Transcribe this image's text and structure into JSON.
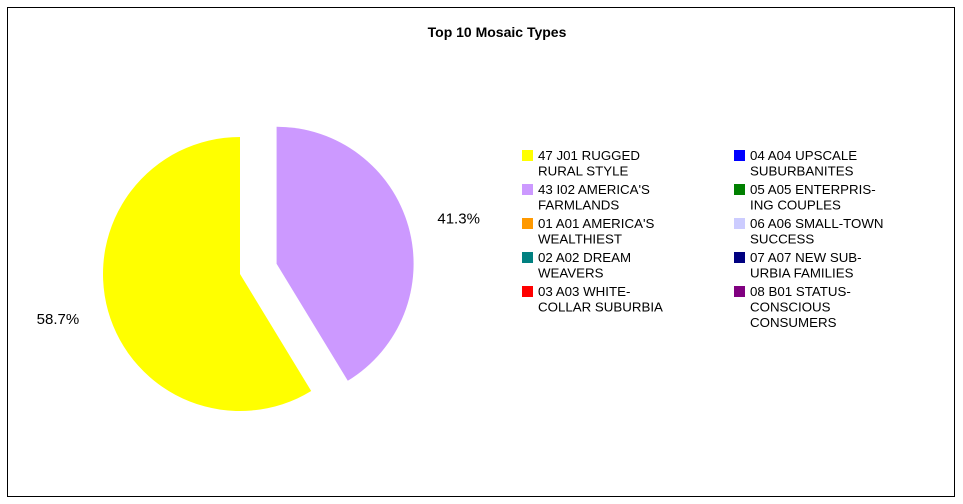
{
  "chart_data": {
    "type": "pie",
    "title": "Top 10 Mosaic Types",
    "slices": [
      {
        "label": [
          "47 J01 RUGGED",
          "RURAL STYLE"
        ],
        "value": 58.7,
        "value_label": "58.7%",
        "color": "#ffff00",
        "shown_in_pie": true
      },
      {
        "label": [
          "43 I02 AMERICA'S",
          "FARMLANDS"
        ],
        "value": 41.3,
        "value_label": "41.3%",
        "color": "#cc99ff",
        "shown_in_pie": true
      },
      {
        "label": [
          "01 A01 AMERICA'S",
          "WEALTHIEST"
        ],
        "value": 0,
        "color": "#ff9900",
        "shown_in_pie": false
      },
      {
        "label": [
          "02 A02 DREAM",
          "WEAVERS"
        ],
        "value": 0,
        "color": "#008080",
        "shown_in_pie": false
      },
      {
        "label": [
          "03 A03 WHITE-",
          "COLLAR SUBURBIA"
        ],
        "value": 0,
        "color": "#ff0000",
        "shown_in_pie": false
      },
      {
        "label": [
          "04 A04 UPSCALE",
          "SUBURBANITES"
        ],
        "value": 0,
        "color": "#0000ff",
        "shown_in_pie": false
      },
      {
        "label": [
          "05 A05 ENTERPRIS-",
          "ING COUPLES"
        ],
        "value": 0,
        "color": "#008000",
        "shown_in_pie": false
      },
      {
        "label": [
          "06 A06 SMALL-TOWN",
          "SUCCESS"
        ],
        "value": 0,
        "color": "#ccccff",
        "shown_in_pie": false
      },
      {
        "label": [
          "07 A07 NEW SUB-",
          "URBIA FAMILIES"
        ],
        "value": 0,
        "color": "#000080",
        "shown_in_pie": false
      },
      {
        "label": [
          "08 B01 STATUS-",
          "CONSCIOUS",
          "CONSUMERS"
        ],
        "value": 0,
        "color": "#800080",
        "shown_in_pie": false
      }
    ],
    "legend_position": "right",
    "exploded_slice": "43 I02 AMERICA'S FARMLANDS"
  }
}
